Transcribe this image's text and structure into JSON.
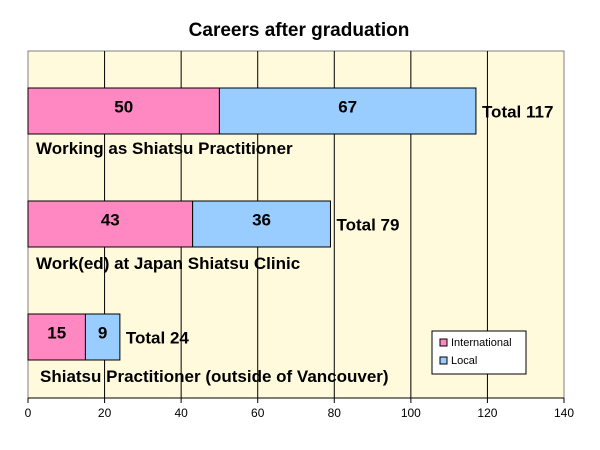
{
  "chart_data": {
    "type": "bar",
    "orientation": "horizontal",
    "stacked": true,
    "title": "Careers after graduation",
    "categories": [
      "Working as Shiatsu Practitioner",
      "Work(ed) at Japan Shiatsu Clinic",
      "Shiatsu Practitioner (outside of Vancouver)"
    ],
    "series": [
      {
        "name": "International",
        "values": [
          50,
          43,
          15
        ],
        "color": "#ff88c2"
      },
      {
        "name": "Local",
        "values": [
          67,
          36,
          9
        ],
        "color": "#99ccff"
      }
    ],
    "totals": [
      "Total 117",
      "Total 79",
      "Total 24"
    ],
    "xlim": [
      0,
      140
    ],
    "xticks": [
      0,
      20,
      40,
      60,
      80,
      100,
      120,
      140
    ],
    "grid": true,
    "plot_background": "#fffadc",
    "legend_position": "bottom-right"
  }
}
